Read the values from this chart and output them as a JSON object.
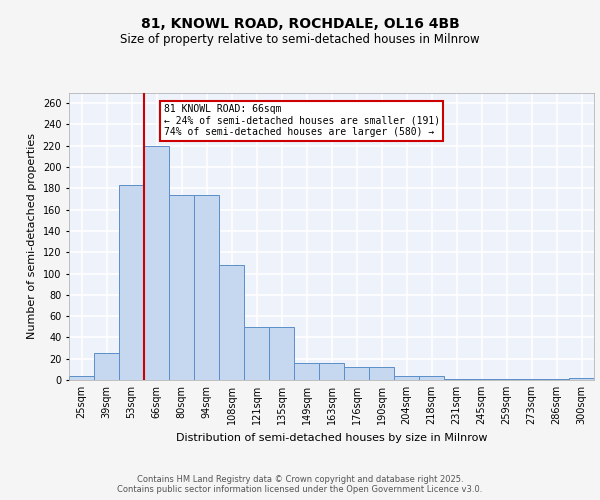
{
  "title": "81, KNOWL ROAD, ROCHDALE, OL16 4BB",
  "subtitle": "Size of property relative to semi-detached houses in Milnrow",
  "xlabel": "Distribution of semi-detached houses by size in Milnrow",
  "ylabel": "Number of semi-detached properties",
  "categories": [
    "25sqm",
    "39sqm",
    "53sqm",
    "66sqm",
    "80sqm",
    "94sqm",
    "108sqm",
    "121sqm",
    "135sqm",
    "149sqm",
    "163sqm",
    "176sqm",
    "190sqm",
    "204sqm",
    "218sqm",
    "231sqm",
    "245sqm",
    "259sqm",
    "273sqm",
    "286sqm",
    "300sqm"
  ],
  "values": [
    4,
    25,
    183,
    220,
    174,
    174,
    108,
    50,
    50,
    16,
    16,
    12,
    12,
    4,
    4,
    1,
    1,
    1,
    1,
    1,
    2
  ],
  "bar_color": "#c5d8f0",
  "bar_edge_color": "#5b8ec9",
  "annotation_text": "81 KNOWL ROAD: 66sqm\n← 24% of semi-detached houses are smaller (191)\n74% of semi-detached houses are larger (580) →",
  "annotation_box_color": "#ffffff",
  "annotation_box_edge_color": "#cc0000",
  "vline_color": "#cc0000",
  "vline_bin": 3,
  "background_color": "#eef2fb",
  "grid_color": "#ffffff",
  "footer_text": "Contains HM Land Registry data © Crown copyright and database right 2025.\nContains public sector information licensed under the Open Government Licence v3.0.",
  "ylim": [
    0,
    270
  ],
  "yticks": [
    0,
    20,
    40,
    60,
    80,
    100,
    120,
    140,
    160,
    180,
    200,
    220,
    240,
    260
  ],
  "title_fontsize": 10,
  "subtitle_fontsize": 8.5,
  "ylabel_fontsize": 8,
  "xlabel_fontsize": 8,
  "tick_fontsize": 7,
  "footer_fontsize": 6,
  "fig_bg": "#f5f5f5"
}
